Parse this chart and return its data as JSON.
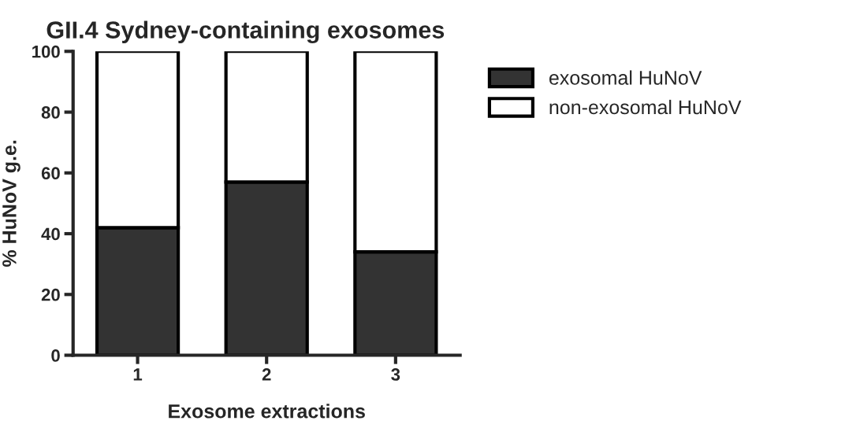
{
  "chart_data": {
    "type": "bar",
    "title": "GII.4 Sydney-containing exosomes",
    "xlabel": "Exosome extractions",
    "ylabel": "% HuNoV g.e.",
    "categories": [
      "1",
      "2",
      "3"
    ],
    "stacked": true,
    "series": [
      {
        "name": "exosomal HuNoV",
        "color": "#333333",
        "values": [
          42,
          57,
          34
        ]
      },
      {
        "name": "non-exosomal HuNoV",
        "color": "#ffffff",
        "values": [
          58,
          43,
          66
        ]
      }
    ],
    "ylim": [
      0,
      100
    ],
    "yticks": [
      0,
      20,
      40,
      60,
      80,
      100
    ],
    "grid": false,
    "legend": "top right"
  }
}
